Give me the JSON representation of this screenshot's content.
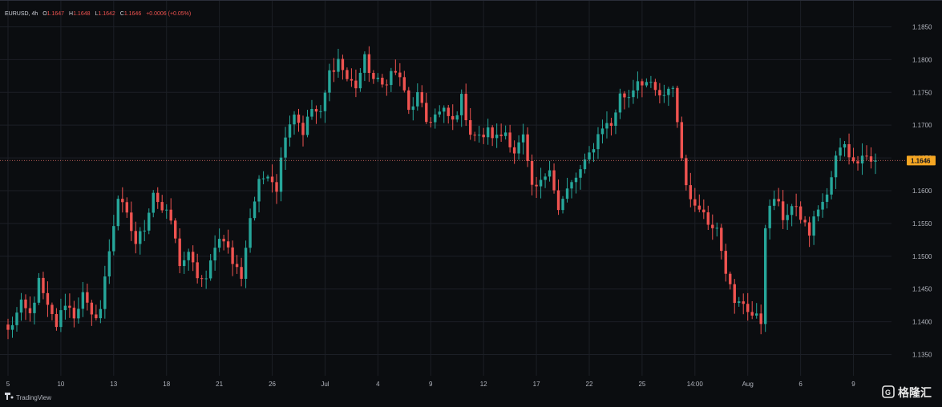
{
  "legend": {
    "symbol": "EURUSD",
    "interval": "4h",
    "o_label": "O",
    "o_value": "1.1647",
    "h_label": "H",
    "h_value": "1.1648",
    "l_label": "L",
    "l_value": "1.1642",
    "c_label": "C",
    "c_value": "1.1646",
    "change": "+0.0006 (+0.05%)"
  },
  "brand": {
    "name": "TradingView"
  },
  "watermark": {
    "text": "格隆汇"
  },
  "colors": {
    "up": "#26a69a",
    "down": "#ef5350",
    "price_tag": "#f5a623",
    "price_line": "#f77b72",
    "grid": "#1c1f26"
  },
  "chart_data": {
    "type": "candlestick",
    "symbol": "EURUSD",
    "interval": "4h",
    "last_price": 1.1646,
    "last_price_label": "1.1646",
    "ylim": [
      1.1325,
      1.1875
    ],
    "y_ticks": [
      1.185,
      1.18,
      1.175,
      1.17,
      1.165,
      1.16,
      1.155,
      1.15,
      1.145,
      1.14,
      1.135
    ],
    "y_tick_labels": [
      "1.1850",
      "1.1800",
      "1.1750",
      "1.1700",
      "1.1650",
      "1.1600",
      "1.1550",
      "1.1500",
      "1.1450",
      "1.1400",
      "1.1350"
    ],
    "x_tick_labels": [
      "5",
      "10",
      "13",
      "18",
      "21",
      "26",
      "Jul",
      "4",
      "9",
      "12",
      "17",
      "22",
      "25",
      "14:00",
      "Aug",
      "6",
      "9"
    ],
    "x_tick_positions": [
      0,
      12,
      24,
      36,
      48,
      60,
      72,
      84,
      96,
      108,
      120,
      132,
      144,
      156,
      168,
      180,
      192
    ],
    "grid": true,
    "close_anchors": [
      [
        0,
        1.1385
      ],
      [
        3,
        1.1425
      ],
      [
        5,
        1.141
      ],
      [
        7,
        1.146
      ],
      [
        9,
        1.142
      ],
      [
        11,
        1.1395
      ],
      [
        13,
        1.143
      ],
      [
        15,
        1.141
      ],
      [
        17,
        1.144
      ],
      [
        19,
        1.1405
      ],
      [
        21,
        1.142
      ],
      [
        23,
        1.151
      ],
      [
        25,
        1.159
      ],
      [
        27,
        1.156
      ],
      [
        29,
        1.152
      ],
      [
        31,
        1.1545
      ],
      [
        33,
        1.16
      ],
      [
        35,
        1.157
      ],
      [
        37,
        1.1555
      ],
      [
        39,
        1.149
      ],
      [
        41,
        1.15
      ],
      [
        43,
        1.147
      ],
      [
        45,
        1.146
      ],
      [
        47,
        1.152
      ],
      [
        49,
        1.153
      ],
      [
        51,
        1.149
      ],
      [
        53,
        1.147
      ],
      [
        55,
        1.156
      ],
      [
        57,
        1.161
      ],
      [
        59,
        1.163
      ],
      [
        61,
        1.1605
      ],
      [
        63,
        1.169
      ],
      [
        65,
        1.172
      ],
      [
        67,
        1.169
      ],
      [
        69,
        1.1725
      ],
      [
        71,
        1.1715
      ],
      [
        73,
        1.178
      ],
      [
        75,
        1.18
      ],
      [
        77,
        1.177
      ],
      [
        79,
        1.176
      ],
      [
        81,
        1.18
      ],
      [
        83,
        1.177
      ],
      [
        85,
        1.176
      ],
      [
        87,
        1.178
      ],
      [
        89,
        1.1775
      ],
      [
        91,
        1.172
      ],
      [
        93,
        1.1745
      ],
      [
        95,
        1.1705
      ],
      [
        97,
        1.1715
      ],
      [
        99,
        1.172
      ],
      [
        101,
        1.1705
      ],
      [
        103,
        1.174
      ],
      [
        105,
        1.169
      ],
      [
        107,
        1.168
      ],
      [
        109,
        1.169
      ],
      [
        111,
        1.168
      ],
      [
        113,
        1.169
      ],
      [
        115,
        1.166
      ],
      [
        117,
        1.168
      ],
      [
        119,
        1.16
      ],
      [
        121,
        1.161
      ],
      [
        123,
        1.164
      ],
      [
        125,
        1.157
      ],
      [
        127,
        1.16
      ],
      [
        129,
        1.162
      ],
      [
        131,
        1.164
      ],
      [
        133,
        1.167
      ],
      [
        135,
        1.17
      ],
      [
        137,
        1.17
      ],
      [
        139,
        1.1745
      ],
      [
        141,
        1.1745
      ],
      [
        143,
        1.177
      ],
      [
        145,
        1.1765
      ],
      [
        147,
        1.175
      ],
      [
        149,
        1.174
      ],
      [
        151,
        1.176
      ],
      [
        153,
        1.165
      ],
      [
        155,
        1.158
      ],
      [
        157,
        1.158
      ],
      [
        159,
        1.155
      ],
      [
        161,
        1.155
      ],
      [
        163,
        1.148
      ],
      [
        165,
        1.1425
      ],
      [
        167,
        1.143
      ],
      [
        169,
        1.141
      ],
      [
        171,
        1.14
      ],
      [
        172,
        1.155
      ],
      [
        174,
        1.159
      ],
      [
        176,
        1.156
      ],
      [
        178,
        1.1575
      ],
      [
        180,
        1.156
      ],
      [
        182,
        1.1535
      ],
      [
        184,
        1.1575
      ],
      [
        186,
        1.159
      ],
      [
        188,
        1.165
      ],
      [
        190,
        1.1675
      ],
      [
        192,
        1.164
      ],
      [
        194,
        1.166
      ],
      [
        196,
        1.1645
      ],
      [
        197,
        1.1646
      ]
    ]
  }
}
